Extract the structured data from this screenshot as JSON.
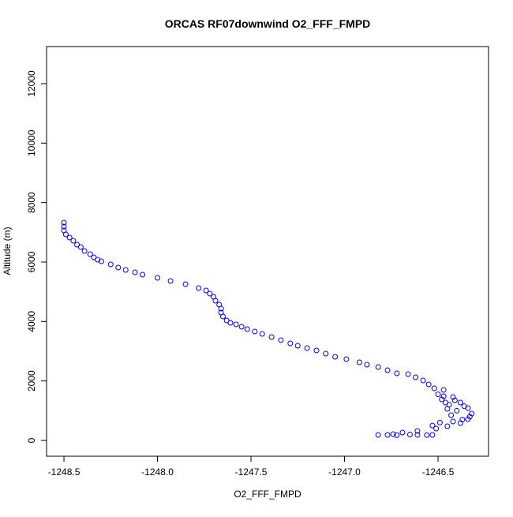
{
  "chart_data": {
    "type": "scatter",
    "title": "ORCAS RF07downwind O2_FFF_FMPD",
    "x_label": "O2_FFF_FMPD",
    "y_label": "Altitude (m)",
    "color": "#0000ff",
    "x": [
      -1248.5,
      -1248.5,
      -1248.5,
      -1248.49,
      -1248.47,
      -1248.45,
      -1248.43,
      -1248.41,
      -1248.39,
      -1248.36,
      -1248.34,
      -1248.32,
      -1248.3,
      -1248.25,
      -1248.21,
      -1248.17,
      -1248.12,
      -1248.08,
      -1248.0,
      -1247.93,
      -1247.85,
      -1247.78,
      -1247.74,
      -1247.72,
      -1247.7,
      -1247.69,
      -1247.67,
      -1247.66,
      -1247.66,
      -1247.65,
      -1247.63,
      -1247.61,
      -1247.58,
      -1247.55,
      -1247.52,
      -1247.48,
      -1247.44,
      -1247.39,
      -1247.34,
      -1247.29,
      -1247.25,
      -1247.2,
      -1247.15,
      -1247.1,
      -1247.05,
      -1246.99,
      -1246.92,
      -1246.88,
      -1246.82,
      -1246.77,
      -1246.72,
      -1246.66,
      -1246.62,
      -1246.58,
      -1246.55,
      -1246.52,
      -1246.47,
      -1246.42,
      -1246.38,
      -1246.34,
      -1246.32,
      -1246.34,
      -1246.38,
      -1246.45,
      -1246.51,
      -1246.61,
      -1246.69,
      -1246.74,
      -1246.77,
      -1246.82,
      -1246.61,
      -1246.53,
      -1246.47,
      -1246.46,
      -1246.45,
      -1246.43,
      -1246.42,
      -1246.5,
      -1246.48,
      -1246.44,
      -1246.4,
      -1246.36,
      -1246.33,
      -1246.37,
      -1246.41,
      -1246.49,
      -1246.53,
      -1246.56,
      -1246.65,
      -1246.72
    ],
    "values": [
      7327,
      7194,
      7061,
      6929,
      6822,
      6716,
      6584,
      6504,
      6371,
      6265,
      6159,
      6079,
      6026,
      5920,
      5814,
      5734,
      5654,
      5575,
      5469,
      5362,
      5256,
      5123,
      5044,
      4938,
      4831,
      4699,
      4566,
      4433,
      4300,
      4168,
      4035,
      3955,
      3902,
      3823,
      3743,
      3663,
      3584,
      3478,
      3371,
      3265,
      3186,
      3106,
      3026,
      2920,
      2814,
      2734,
      2628,
      2548,
      2469,
      2363,
      2256,
      2230,
      2124,
      2018,
      1885,
      1752,
      1699,
      1460,
      1274,
      1088,
      903,
      717,
      584,
      478,
      398,
      319,
      265,
      212,
      186,
      186,
      186,
      186,
      1487,
      1274,
      1062,
      849,
      637,
      1550,
      1380,
      1200,
      1000,
      1150,
      800,
      700,
      1350,
      600,
      500,
      180,
      200,
      180
    ],
    "xlim": [
      -1248.593,
      -1246.23
    ],
    "ylim": [
      -531,
      13247
    ],
    "xticks": [
      -1248.5,
      {
        "value": -1248,
        "label": "-1248.0"
      },
      -1247.5,
      {
        "value": -1247,
        "label": "-1247.0"
      },
      -1246.5
    ],
    "yticks": [
      0,
      2000,
      4000,
      6000,
      8000,
      10000,
      12000
    ]
  }
}
